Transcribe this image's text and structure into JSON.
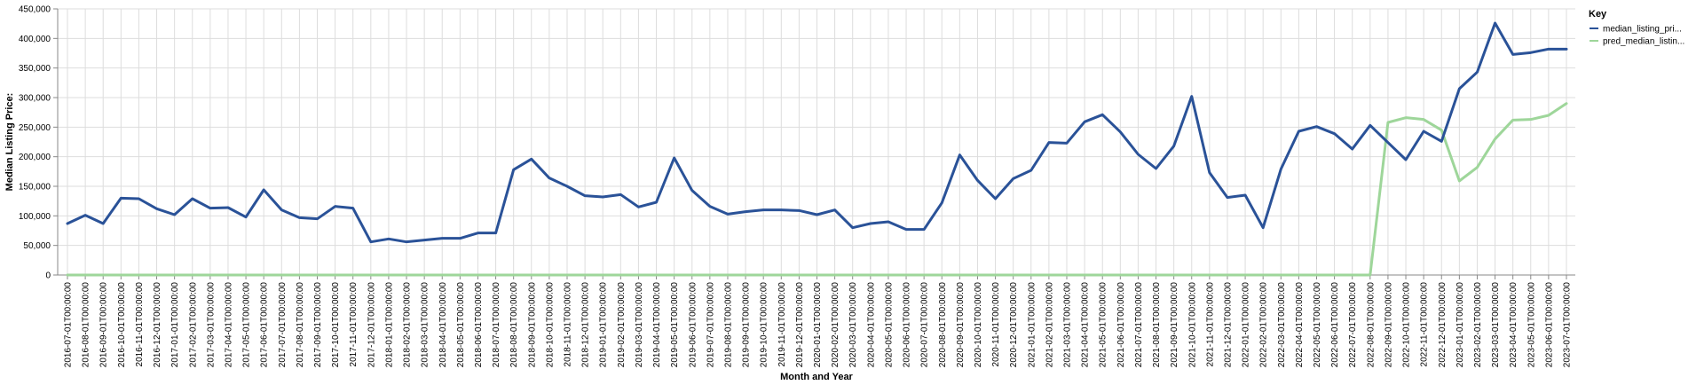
{
  "chart_data": {
    "type": "line",
    "xlabel": "Month and Year",
    "ylabel": "Median Listing Price:",
    "ylim": [
      0,
      450000
    ],
    "yticks": [
      "0",
      "50,000",
      "100,000",
      "150,000",
      "200,000",
      "250,000",
      "300,000",
      "350,000",
      "400,000",
      "450,000"
    ],
    "ytick_values": [
      0,
      50000,
      100000,
      150000,
      200000,
      250000,
      300000,
      350000,
      400000,
      450000
    ],
    "grid": true,
    "legend": {
      "title": "Key",
      "placement": "right"
    },
    "x": [
      "2016-07-01T00:00:00",
      "2016-08-01T00:00:00",
      "2016-09-01T00:00:00",
      "2016-10-01T00:00:00",
      "2016-11-01T00:00:00",
      "2016-12-01T00:00:00",
      "2017-01-01T00:00:00",
      "2017-02-01T00:00:00",
      "2017-03-01T00:00:00",
      "2017-04-01T00:00:00",
      "2017-05-01T00:00:00",
      "2017-06-01T00:00:00",
      "2017-07-01T00:00:00",
      "2017-08-01T00:00:00",
      "2017-09-01T00:00:00",
      "2017-10-01T00:00:00",
      "2017-11-01T00:00:00",
      "2017-12-01T00:00:00",
      "2018-01-01T00:00:00",
      "2018-02-01T00:00:00",
      "2018-03-01T00:00:00",
      "2018-04-01T00:00:00",
      "2018-05-01T00:00:00",
      "2018-06-01T00:00:00",
      "2018-07-01T00:00:00",
      "2018-08-01T00:00:00",
      "2018-09-01T00:00:00",
      "2018-10-01T00:00:00",
      "2018-11-01T00:00:00",
      "2018-12-01T00:00:00",
      "2019-01-01T00:00:00",
      "2019-02-01T00:00:00",
      "2019-03-01T00:00:00",
      "2019-04-01T00:00:00",
      "2019-05-01T00:00:00",
      "2019-06-01T00:00:00",
      "2019-07-01T00:00:00",
      "2019-08-01T00:00:00",
      "2019-09-01T00:00:00",
      "2019-10-01T00:00:00",
      "2019-11-01T00:00:00",
      "2019-12-01T00:00:00",
      "2020-01-01T00:00:00",
      "2020-02-01T00:00:00",
      "2020-03-01T00:00:00",
      "2020-04-01T00:00:00",
      "2020-05-01T00:00:00",
      "2020-06-01T00:00:00",
      "2020-07-01T00:00:00",
      "2020-08-01T00:00:00",
      "2020-09-01T00:00:00",
      "2020-10-01T00:00:00",
      "2020-11-01T00:00:00",
      "2020-12-01T00:00:00",
      "2021-01-01T00:00:00",
      "2021-02-01T00:00:00",
      "2021-03-01T00:00:00",
      "2021-04-01T00:00:00",
      "2021-05-01T00:00:00",
      "2021-06-01T00:00:00",
      "2021-07-01T00:00:00",
      "2021-08-01T00:00:00",
      "2021-09-01T00:00:00",
      "2021-10-01T00:00:00",
      "2021-11-01T00:00:00",
      "2021-12-01T00:00:00",
      "2022-01-01T00:00:00",
      "2022-02-01T00:00:00",
      "2022-03-01T00:00:00",
      "2022-04-01T00:00:00",
      "2022-05-01T00:00:00",
      "2022-06-01T00:00:00",
      "2022-07-01T00:00:00",
      "2022-08-01T00:00:00",
      "2022-09-01T00:00:00",
      "2022-10-01T00:00:00",
      "2022-11-01T00:00:00",
      "2022-12-01T00:00:00",
      "2023-01-01T00:00:00",
      "2023-02-01T00:00:00",
      "2023-03-01T00:00:00",
      "2023-04-01T00:00:00",
      "2023-05-01T00:00:00",
      "2023-06-01T00:00:00",
      "2023-07-01T00:00:00"
    ],
    "series": [
      {
        "name": "median_listing_pri...",
        "color": "#2a5298",
        "values": [
          87000,
          101000,
          87000,
          130000,
          129000,
          112000,
          102000,
          129000,
          113000,
          114000,
          98000,
          144000,
          110000,
          97000,
          95000,
          116000,
          113000,
          56000,
          61000,
          56000,
          59000,
          62000,
          62000,
          71000,
          71000,
          178000,
          196000,
          164000,
          150000,
          134000,
          132000,
          136000,
          115000,
          123000,
          198000,
          143000,
          116000,
          103000,
          107000,
          110000,
          110000,
          109000,
          102000,
          110000,
          80000,
          87000,
          90000,
          77000,
          77000,
          122000,
          203000,
          160000,
          129000,
          163000,
          177000,
          224000,
          223000,
          259000,
          271000,
          242000,
          204000,
          180000,
          218000,
          302000,
          173000,
          131000,
          135000,
          80000,
          179000,
          243000,
          251000,
          239000,
          213000,
          253000,
          224000,
          195000,
          243000,
          226000,
          315000,
          343000,
          426000,
          373000,
          376000,
          382000,
          382000
        ]
      },
      {
        "name": "pred_median_listin...",
        "color": "#9ed69a",
        "values": [
          0,
          0,
          0,
          0,
          0,
          0,
          0,
          0,
          0,
          0,
          0,
          0,
          0,
          0,
          0,
          0,
          0,
          0,
          0,
          0,
          0,
          0,
          0,
          0,
          0,
          0,
          0,
          0,
          0,
          0,
          0,
          0,
          0,
          0,
          0,
          0,
          0,
          0,
          0,
          0,
          0,
          0,
          0,
          0,
          0,
          0,
          0,
          0,
          0,
          0,
          0,
          0,
          0,
          0,
          0,
          0,
          0,
          0,
          0,
          0,
          0,
          0,
          0,
          0,
          0,
          0,
          0,
          0,
          0,
          0,
          0,
          0,
          0,
          0,
          258000,
          266000,
          263000,
          245000,
          159000,
          182000,
          230000,
          262000,
          263000,
          270000,
          290000
        ]
      }
    ]
  }
}
